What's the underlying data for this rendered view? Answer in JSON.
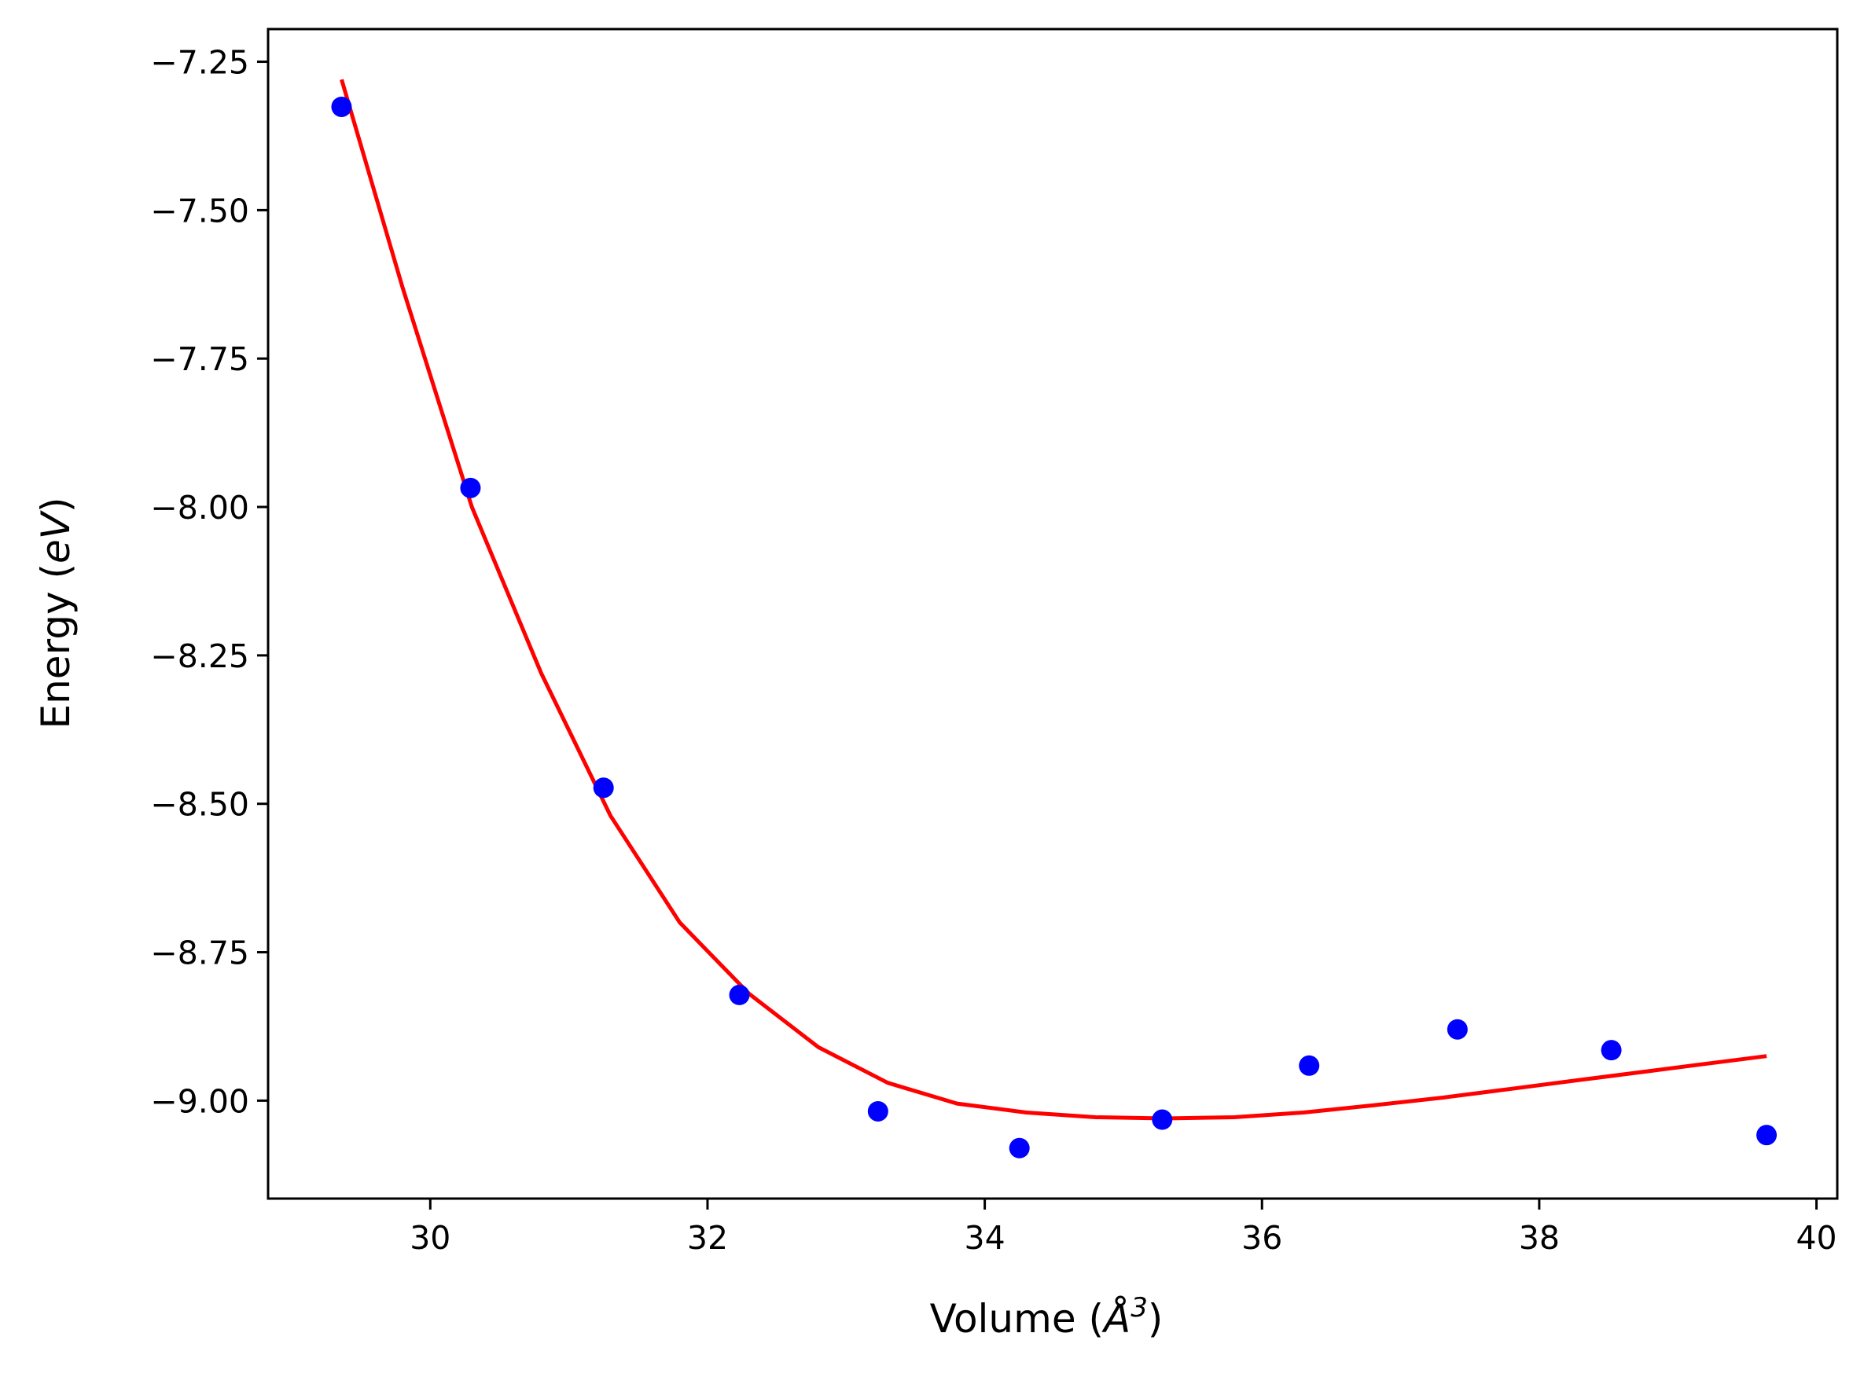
{
  "chart_data": {
    "type": "scatter",
    "xlabel_prefix": "Volume (",
    "xlabel_symbol": "Å",
    "xlabel_sup": "3",
    "xlabel_suffix": ")",
    "ylabel_prefix": "Energy (",
    "ylabel_italic": "eV",
    "ylabel_suffix": ")",
    "xlim": [
      28.83,
      40.15
    ],
    "ylim": [
      -9.165,
      -7.195
    ],
    "grid": false,
    "x_ticks": [
      30,
      32,
      34,
      36,
      38,
      40
    ],
    "x_tick_labels": [
      "30",
      "32",
      "34",
      "36",
      "38",
      "40"
    ],
    "y_ticks": [
      -7.25,
      -7.5,
      -7.75,
      -8.0,
      -8.25,
      -8.5,
      -8.75,
      -9.0
    ],
    "y_tick_labels": [
      "−7.25",
      "−7.50",
      "−7.75",
      "−8.00",
      "−8.25",
      "−8.50",
      "−8.75",
      "−9.00"
    ],
    "series": [
      {
        "kind": "points",
        "color": "#0000ff",
        "x": [
          29.36,
          30.29,
          31.25,
          32.23,
          33.23,
          34.25,
          35.28,
          36.34,
          37.41,
          38.52,
          39.64
        ],
        "y": [
          -7.326,
          -7.968,
          -8.473,
          -8.822,
          -9.018,
          -9.08,
          -9.032,
          -8.941,
          -8.88,
          -8.915,
          -9.058
        ]
      },
      {
        "kind": "fit-line",
        "color": "#ff0000",
        "x": [
          29.36,
          29.8,
          30.3,
          30.8,
          31.3,
          31.8,
          32.3,
          32.8,
          33.3,
          33.8,
          34.3,
          34.8,
          35.3,
          35.8,
          36.3,
          36.8,
          37.3,
          37.8,
          38.3,
          38.8,
          39.3,
          39.64
        ],
        "y": [
          -7.28,
          -7.63,
          -8.0,
          -8.28,
          -8.52,
          -8.7,
          -8.82,
          -8.91,
          -8.97,
          -9.005,
          -9.02,
          -9.028,
          -9.03,
          -9.028,
          -9.02,
          -9.008,
          -8.995,
          -8.98,
          -8.965,
          -8.95,
          -8.935,
          -8.925
        ]
      }
    ]
  }
}
